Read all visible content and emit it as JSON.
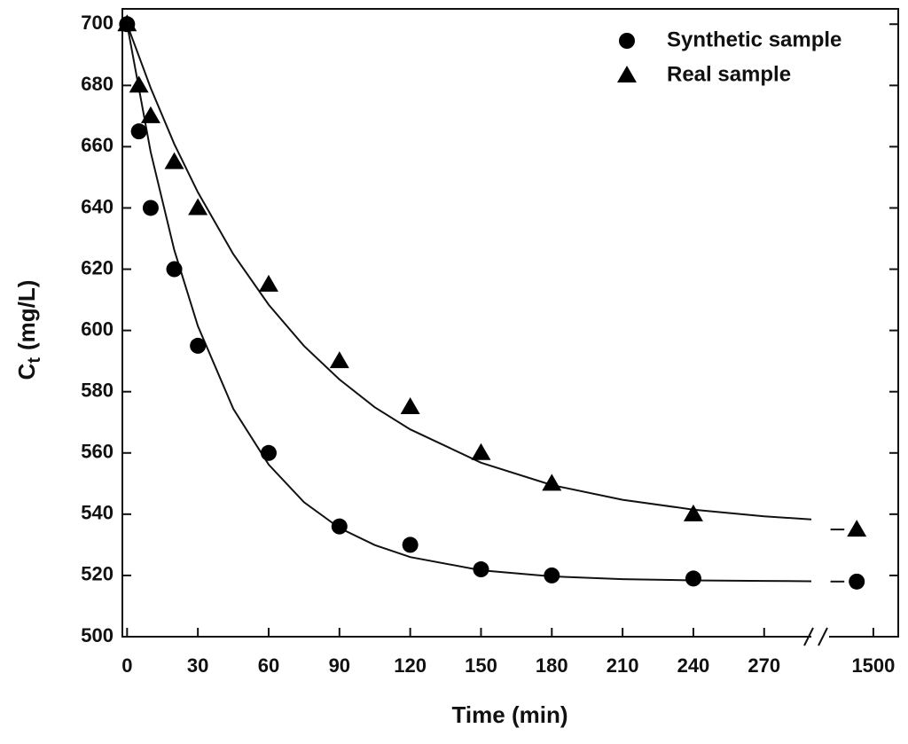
{
  "chart_data": {
    "type": "scatter",
    "xlabel": "Time (min)",
    "ylabel": {
      "main": "C",
      "sub": "t",
      "unit": "(mg/L)"
    },
    "x": [
      0,
      5,
      10,
      20,
      30,
      60,
      90,
      120,
      150,
      180,
      240,
      1440
    ],
    "series": [
      {
        "name": "Synthetic sample",
        "marker": "circle",
        "color": "#000000",
        "values": [
          700,
          665,
          640,
          620,
          595,
          560,
          536,
          530,
          522,
          520,
          519,
          518
        ],
        "fit_values": [
          700,
          658.3,
          626.3,
          601.4,
          574.4,
          556.2,
          543.9,
          535.5,
          529.9,
          526.0,
          521.7,
          519.7,
          518.8,
          518.4,
          518.2,
          518.1,
          518,
          518
        ]
      },
      {
        "name": "Real sample",
        "marker": "triangle",
        "color": "#000000",
        "values": [
          700,
          680,
          670,
          655,
          640,
          615,
          590,
          575,
          560,
          550,
          540,
          535
        ],
        "fit_values": [
          700,
          679.2,
          660.9,
          645.1,
          624.9,
          608.4,
          594.9,
          584.0,
          574.9,
          567.7,
          556.8,
          549.5,
          544.7,
          541.5,
          539.3,
          538.3,
          535,
          535
        ]
      }
    ],
    "fit_x": [
      0,
      10,
      20,
      30,
      45,
      60,
      75,
      90,
      105,
      120,
      150,
      180,
      210,
      240,
      270,
      290,
      1345,
      1395
    ],
    "xlim": [
      -2,
      290
    ],
    "xticks": [
      0,
      30,
      60,
      90,
      120,
      150,
      180,
      210,
      240,
      270
    ],
    "x_break": {
      "xlim": [
        1340,
        1590
      ],
      "xticks": [
        1500
      ]
    },
    "ylim": [
      500,
      705
    ],
    "yticks": [
      500,
      520,
      540,
      560,
      580,
      600,
      620,
      640,
      660,
      680,
      700
    ],
    "legend": "upper right"
  }
}
